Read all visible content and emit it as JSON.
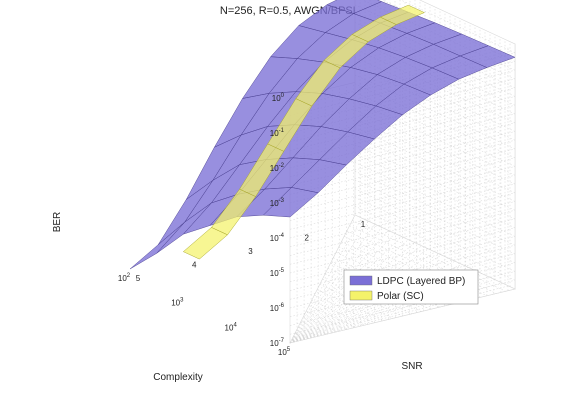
{
  "chart_data": {
    "type": "surface",
    "title": "N=256, R=0.5, AWGN/BPSK",
    "xlabel": "SNR",
    "ylabel": "Complexity",
    "zlabel": "BER",
    "x_ticks": [
      "1",
      "2",
      "3",
      "4",
      "5"
    ],
    "y_tick_base": "10",
    "y_tick_exponents": [
      "2",
      "3",
      "4",
      "5"
    ],
    "z_tick_base": "10",
    "z_tick_exponents": [
      "0",
      "-1",
      "-2",
      "-3",
      "-4",
      "-5",
      "-6",
      "-7"
    ],
    "xlim": [
      1,
      5
    ],
    "ylim": [
      100,
      100000
    ],
    "zlim": [
      1e-07,
      1
    ],
    "y_scale": "log",
    "z_scale": "log",
    "grid": true,
    "legend_position": "right",
    "series": [
      {
        "name": "LDPC (Layered BP)",
        "color": "#7b6fd6",
        "snr": [
          1,
          1.5,
          2,
          2.5,
          3,
          3.5,
          4,
          4.5,
          5
        ],
        "complexity": [
          100,
          316,
          1000,
          3162,
          10000,
          31623,
          100000
        ],
        "ber_log10_rows": [
          [
            -0.6,
            -0.8,
            -1.2,
            -1.9,
            -2.9,
            -4.1,
            -5.4,
            -6.5,
            -7.0
          ],
          [
            -0.55,
            -0.7,
            -1.05,
            -1.6,
            -2.4,
            -3.4,
            -4.5,
            -5.5,
            -6.2
          ],
          [
            -0.5,
            -0.62,
            -0.9,
            -1.35,
            -2.0,
            -2.8,
            -3.7,
            -4.6,
            -5.3
          ],
          [
            -0.45,
            -0.56,
            -0.78,
            -1.15,
            -1.7,
            -2.4,
            -3.2,
            -4.0,
            -4.7
          ],
          [
            -0.42,
            -0.52,
            -0.7,
            -1.0,
            -1.5,
            -2.1,
            -2.8,
            -3.5,
            -4.1
          ],
          [
            -0.4,
            -0.5,
            -0.65,
            -0.92,
            -1.35,
            -1.9,
            -2.5,
            -3.1,
            -3.7
          ],
          [
            -0.38,
            -0.48,
            -0.62,
            -0.88,
            -1.25,
            -1.75,
            -2.3,
            -2.9,
            -3.4
          ]
        ]
      },
      {
        "name": "Polar (SC)",
        "color": "#f4f26a",
        "snr": [
          1,
          1.5,
          2,
          2.5,
          3,
          3.5,
          4,
          4.5,
          5
        ],
        "complexity": [
          1000,
          2000
        ],
        "ber_log10_rows": [
          [
            -0.3,
            -0.45,
            -0.75,
            -1.3,
            -2.2,
            -3.3,
            -4.4,
            -5.3,
            -5.8
          ],
          [
            -0.3,
            -0.45,
            -0.75,
            -1.3,
            -2.2,
            -3.3,
            -4.4,
            -5.3,
            -5.8
          ]
        ]
      }
    ]
  }
}
